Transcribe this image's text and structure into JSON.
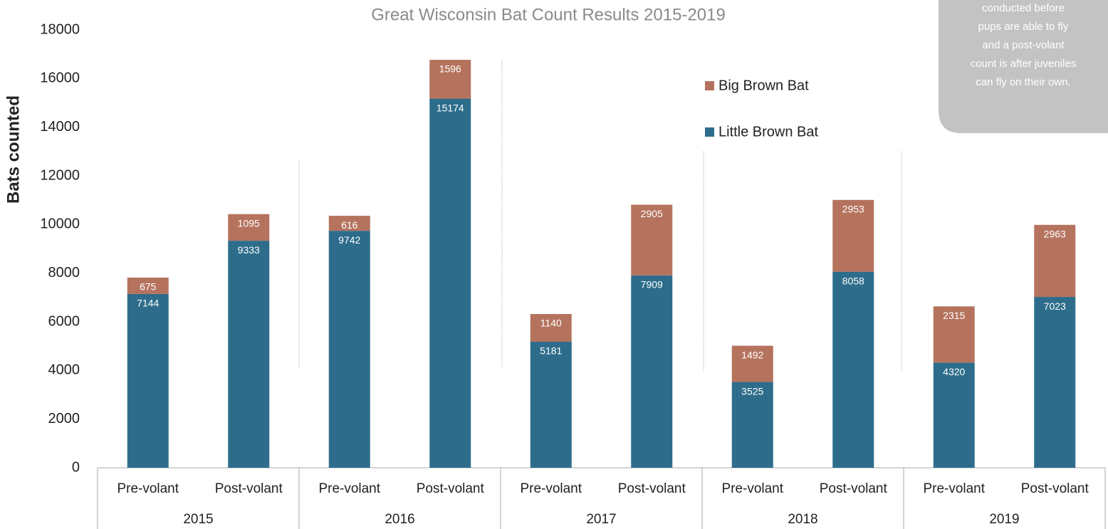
{
  "chart_data": {
    "type": "stacked-bar",
    "title": "Great Wisconsin Bat Count Results 2015-2019",
    "y_label": "Bats counted",
    "categories": [
      "Pre-volant",
      "Post-volant",
      "Pre-volant",
      "Post-volant",
      "Pre-volant",
      "Post-volant",
      "Pre-volant",
      "Post-volant",
      "Pre-volant",
      "Post-volant"
    ],
    "groups": [
      "2015",
      "2016",
      "2017",
      "2018",
      "2019"
    ],
    "series": [
      {
        "name": "Little Brown Bat",
        "color": "#2d6d8b",
        "values": [
          7144,
          9333,
          9742,
          15174,
          5181,
          7909,
          3525,
          8058,
          4320,
          7023
        ]
      },
      {
        "name": "Big Brown Bat",
        "color": "#b5735e",
        "values": [
          675,
          1095,
          616,
          1596,
          1140,
          2905,
          1492,
          2953,
          2315,
          2963
        ]
      }
    ],
    "ylim": [
      0,
      18000
    ],
    "yticks": [
      0,
      2000,
      4000,
      6000,
      8000,
      10000,
      12000,
      14000,
      16000,
      18000
    ],
    "annotation_lines": [
      "conducted before",
      "pups are able to fly",
      "and a post-volant",
      "count is after juveniles",
      "can fly on their own."
    ]
  }
}
